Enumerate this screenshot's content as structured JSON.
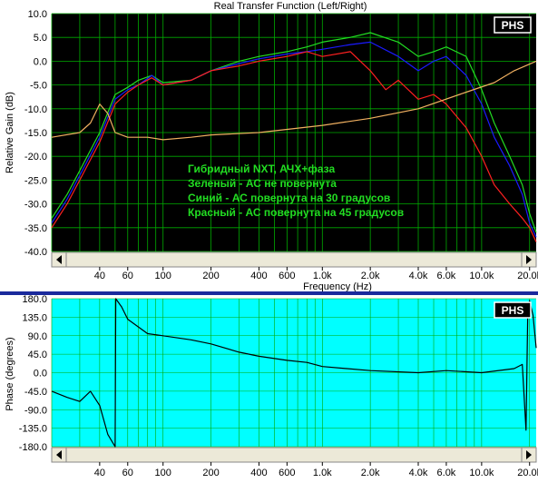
{
  "colors": {
    "green": "#22dd22",
    "blue": "#1a1aff",
    "red": "#ff2020",
    "orange": "#f0b060",
    "grid": "#00aa00",
    "phase_bg": "#00ffff",
    "divider": "#1a2a9c"
  },
  "chart_data": [
    {
      "type": "line",
      "title": "Real Transfer Function (Left/Right)",
      "xlabel": "Frequency (Hz)",
      "ylabel": "Relative Gain (dB)",
      "x_scale": "log",
      "xlim": [
        20,
        22000
      ],
      "ylim": [
        -40,
        10
      ],
      "yticks": [
        "10.0",
        "5.0",
        "0.0",
        "-5.0",
        "-10.0",
        "-15.0",
        "-20.0",
        "-25.0",
        "-30.0",
        "-35.0",
        "-40.0"
      ],
      "xticks": [
        {
          "f": 40,
          "label": "40"
        },
        {
          "f": 60,
          "label": "60"
        },
        {
          "f": 100,
          "label": "100"
        },
        {
          "f": 200,
          "label": "200"
        },
        {
          "f": 400,
          "label": "400"
        },
        {
          "f": 600,
          "label": "600"
        },
        {
          "f": 1000,
          "label": "1.0k"
        },
        {
          "f": 2000,
          "label": "2.0k"
        },
        {
          "f": 4000,
          "label": "4.0k"
        },
        {
          "f": 6000,
          "label": "6.0k"
        },
        {
          "f": 10000,
          "label": "10.0k"
        },
        {
          "f": 20000,
          "label": "20.0k"
        }
      ],
      "badge": "PHS",
      "annotations": [
        "Гибридный NXT, АЧХ+фаза",
        "Зеленый - АС не повернута",
        "Синий - АС повернута на 30 градусов",
        "Красный - АС повернута на 45 градусов"
      ],
      "grid": true,
      "series": [
        {
          "color": "#22dd22",
          "x": [
            20,
            25,
            30,
            40,
            50,
            60,
            70,
            85,
            100,
            150,
            200,
            300,
            400,
            600,
            800,
            1000,
            1500,
            2000,
            3000,
            4000,
            5000,
            6000,
            8000,
            10000,
            12000,
            15000,
            18000,
            20000,
            22000
          ],
          "y": [
            -33,
            -28,
            -23,
            -15,
            -7,
            -5.5,
            -4,
            -3,
            -4.5,
            -4,
            -2,
            0,
            1,
            2,
            3,
            4,
            5,
            6,
            4,
            1,
            2,
            3,
            1,
            -6,
            -13,
            -20,
            -26,
            -32,
            -36
          ]
        },
        {
          "color": "#1a1aff",
          "x": [
            20,
            25,
            30,
            40,
            50,
            60,
            70,
            85,
            100,
            150,
            200,
            300,
            400,
            600,
            800,
            1000,
            1500,
            2000,
            3000,
            4000,
            5000,
            6000,
            8000,
            10000,
            12000,
            15000,
            18000,
            20000,
            22000
          ],
          "y": [
            -34,
            -29,
            -24,
            -16,
            -8,
            -6,
            -5,
            -3,
            -5,
            -4,
            -2,
            -0.5,
            0.5,
            1.5,
            2,
            2.5,
            3.5,
            4,
            1,
            -2,
            0,
            1,
            -3,
            -9,
            -16,
            -22,
            -28,
            -34,
            -37
          ]
        },
        {
          "color": "#ff2020",
          "x": [
            20,
            25,
            30,
            40,
            50,
            60,
            70,
            85,
            100,
            150,
            200,
            300,
            400,
            600,
            800,
            1000,
            1500,
            2000,
            2500,
            3000,
            4000,
            5000,
            6000,
            8000,
            10000,
            12000,
            15000,
            18000,
            20000,
            22000
          ],
          "y": [
            -35,
            -30,
            -25,
            -17,
            -9,
            -6.5,
            -5,
            -3.5,
            -5,
            -4,
            -2,
            -1,
            0,
            1,
            2,
            1,
            2,
            -2,
            -6,
            -4,
            -8,
            -7,
            -9,
            -14,
            -20,
            -26,
            -30,
            -33,
            -35,
            -38
          ]
        },
        {
          "color": "#f0b060",
          "x": [
            20,
            30,
            35,
            40,
            45,
            50,
            60,
            80,
            100,
            150,
            200,
            400,
            1000,
            2000,
            4000,
            8000,
            12000,
            16000,
            22000
          ],
          "y": [
            -16,
            -15,
            -13,
            -9,
            -11,
            -15,
            -16,
            -16,
            -16.5,
            -16,
            -15.5,
            -15,
            -13.5,
            -12,
            -10,
            -6.5,
            -4.5,
            -2,
            0
          ]
        }
      ]
    },
    {
      "type": "line",
      "ylabel": "Phase (degrees)",
      "x_scale": "log",
      "xlim": [
        20,
        22000
      ],
      "ylim": [
        -180,
        180
      ],
      "yticks": [
        "180.0",
        "135.0",
        "90.0",
        "45.0",
        "0.0",
        "-45.0",
        "-90.0",
        "-135.0",
        "-180.0"
      ],
      "xticks": [
        {
          "f": 40,
          "label": "40"
        },
        {
          "f": 60,
          "label": "60"
        },
        {
          "f": 100,
          "label": "100"
        },
        {
          "f": 200,
          "label": "200"
        },
        {
          "f": 400,
          "label": "400"
        },
        {
          "f": 600,
          "label": "600"
        },
        {
          "f": 1000,
          "label": "1.0k"
        },
        {
          "f": 2000,
          "label": "2.0k"
        },
        {
          "f": 4000,
          "label": "4.0k"
        },
        {
          "f": 6000,
          "label": "6.0k"
        },
        {
          "f": 10000,
          "label": "10.0k"
        },
        {
          "f": 20000,
          "label": "20.0k"
        }
      ],
      "badge": "PHS",
      "grid": true,
      "series": [
        {
          "color": "#000000",
          "x": [
            20,
            25,
            30,
            35,
            40,
            45,
            50,
            50.5,
            55,
            60,
            80,
            100,
            150,
            200,
            300,
            400,
            600,
            800,
            1000,
            2000,
            4000,
            6000,
            10000,
            16000,
            18000,
            19000,
            19500,
            20000,
            21000,
            22000
          ],
          "y": [
            -45,
            -60,
            -70,
            -45,
            -80,
            -150,
            -180,
            180,
            160,
            130,
            95,
            90,
            80,
            70,
            50,
            40,
            30,
            25,
            15,
            5,
            0,
            5,
            0,
            10,
            20,
            -140,
            160,
            175,
            140,
            60
          ]
        }
      ]
    }
  ]
}
